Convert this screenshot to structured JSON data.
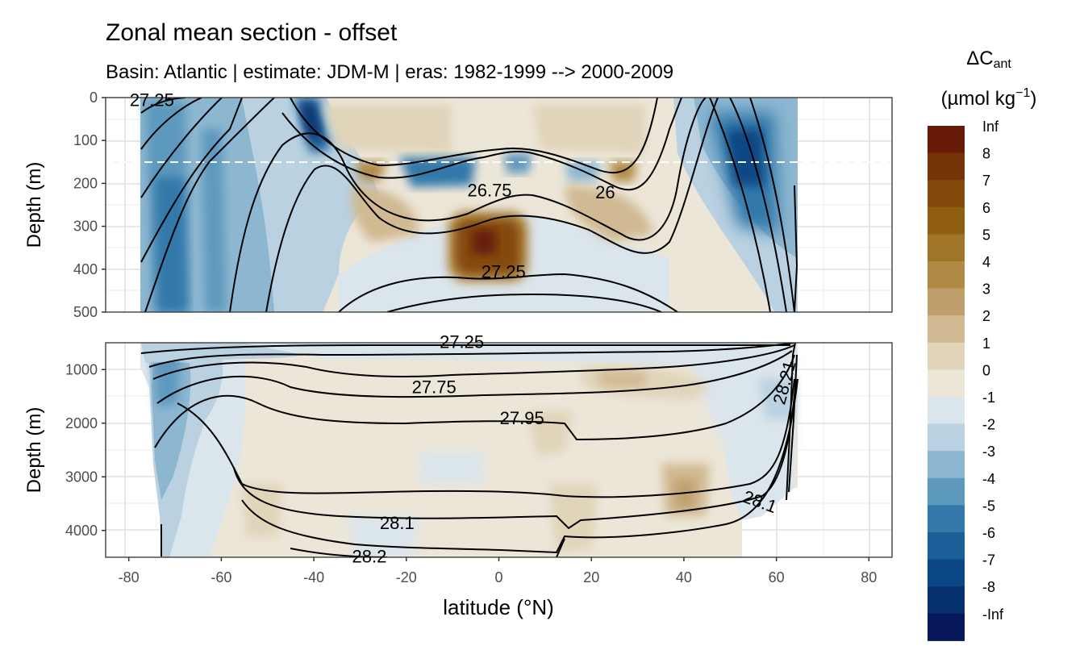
{
  "chart_data": {
    "type": "heatmap",
    "title": "Zonal mean section - offset",
    "subtitle": "Basin: Atlantic | estimate: JDM-M | eras: 1982-1999 --> 2000-2009",
    "xlabel": "latitude (°N)",
    "xlim": [
      -85,
      85
    ],
    "x_ticks": [
      -80,
      -60,
      -40,
      -20,
      0,
      20,
      40,
      60,
      80
    ],
    "panels": [
      {
        "name": "upper",
        "ylabel": "Depth (m)",
        "ylim": [
          500,
          0
        ],
        "y_ticks": [
          0,
          100,
          200,
          300,
          400,
          500
        ],
        "reference_line_depth": 150,
        "isopycnal_labels": [
          {
            "label": "27.25",
            "lat": -75,
            "depth": 5
          },
          {
            "label": "26.75",
            "lat": -2,
            "depth": 215
          },
          {
            "label": "26",
            "lat": 23,
            "depth": 220
          },
          {
            "label": "27.25",
            "lat": 1,
            "depth": 405
          }
        ]
      },
      {
        "name": "lower",
        "ylabel": "Depth (m)",
        "ylim": [
          4500,
          500
        ],
        "y_ticks": [
          1000,
          2000,
          3000,
          4000
        ],
        "isopycnal_labels": [
          {
            "label": "27.25",
            "lat": -8,
            "depth": 480
          },
          {
            "label": "27.75",
            "lat": -14,
            "depth": 1320
          },
          {
            "label": "27.95",
            "lat": 5,
            "depth": 1900
          },
          {
            "label": "28.1",
            "lat": -22,
            "depth": 3850
          },
          {
            "label": "28.2",
            "lat": -28,
            "depth": 4480
          },
          {
            "label": "28.1",
            "lat": 56,
            "depth": 3450
          },
          {
            "label": "28.21",
            "lat": 63,
            "depth": 1150
          }
        ]
      }
    ],
    "legend": {
      "title_main": "ΔC",
      "title_sub": "ant",
      "units": "(µmol kg",
      "units_exp": "−1",
      "units_close": ")",
      "placement": "right",
      "breaks": [
        "Inf",
        "8",
        "7",
        "6",
        "5",
        "4",
        "3",
        "2",
        "1",
        "0",
        "-1",
        "-2",
        "-3",
        "-4",
        "-5",
        "-6",
        "-7",
        "-8",
        "-Inf"
      ],
      "colors": [
        "#671a07",
        "#763307",
        "#844a0b",
        "#8f5e10",
        "#a07527",
        "#b08944",
        "#bfa06d",
        "#d0b993",
        "#e0d4b9",
        "#ece6d8",
        "#dbe5ec",
        "#b9d1e1",
        "#8db7d1",
        "#5d98bd",
        "#3378a9",
        "#1a5f98",
        "#0b4784",
        "#07306f",
        "#061859"
      ]
    }
  }
}
